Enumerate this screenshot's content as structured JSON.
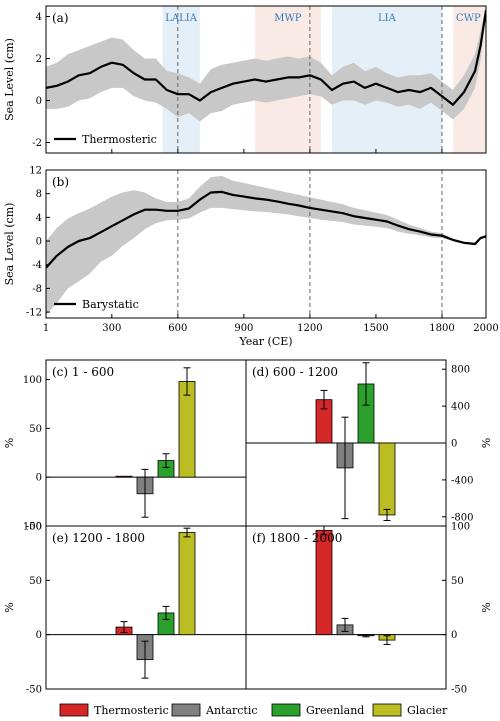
{
  "colors": {
    "thermosteric": "#d62728",
    "antarctic": "#808080",
    "greenland": "#2ca02c",
    "glacier": "#bcbd22",
    "band": "#c8c8c8",
    "cold_period": "#dce9f5",
    "warm_period": "#f8e3de",
    "period_text": "#2f7bbf"
  },
  "chart_data": [
    {
      "id": "a",
      "type": "line",
      "panel_label": "(a)",
      "ylabel": "Sea Level (cm)",
      "xlim": [
        1,
        2000
      ],
      "ylim": [
        -2.5,
        4.5
      ],
      "yticks": [
        -2,
        0,
        2,
        4
      ],
      "legend": "Thermosteric",
      "periods": [
        {
          "label": "LALIA",
          "start": 530,
          "end": 700,
          "kind": "cold"
        },
        {
          "label": "MWP",
          "start": 950,
          "end": 1250,
          "kind": "warm"
        },
        {
          "label": "LIA",
          "start": 1300,
          "end": 1800,
          "kind": "cold"
        },
        {
          "label": "CWP",
          "start": 1850,
          "end": 2000,
          "kind": "warm"
        }
      ],
      "x": [
        1,
        50,
        100,
        150,
        200,
        250,
        300,
        350,
        400,
        450,
        500,
        550,
        600,
        650,
        700,
        750,
        800,
        850,
        900,
        950,
        1000,
        1050,
        1100,
        1150,
        1200,
        1250,
        1300,
        1350,
        1400,
        1450,
        1500,
        1550,
        1600,
        1650,
        1700,
        1750,
        1800,
        1850,
        1900,
        1950,
        1975,
        2000
      ],
      "y": [
        0.6,
        0.7,
        0.9,
        1.2,
        1.3,
        1.6,
        1.8,
        1.7,
        1.3,
        1.0,
        1.0,
        0.5,
        0.3,
        0.3,
        0.0,
        0.4,
        0.6,
        0.8,
        0.9,
        1.0,
        0.9,
        1.0,
        1.1,
        1.1,
        1.2,
        1.0,
        0.5,
        0.8,
        0.9,
        0.6,
        0.8,
        0.6,
        0.4,
        0.5,
        0.4,
        0.6,
        0.2,
        -0.2,
        0.4,
        1.4,
        2.6,
        4.3
      ],
      "upper": [
        1.6,
        1.8,
        2.2,
        2.4,
        2.6,
        2.8,
        3.0,
        2.9,
        2.4,
        2.0,
        2.0,
        1.4,
        1.3,
        1.1,
        0.8,
        1.5,
        1.7,
        1.8,
        1.9,
        2.0,
        1.9,
        2.0,
        2.1,
        2.0,
        2.1,
        1.8,
        1.2,
        1.6,
        1.8,
        1.4,
        1.6,
        1.3,
        1.1,
        1.2,
        1.2,
        1.3,
        0.9,
        0.5,
        1.2,
        2.2,
        3.3,
        4.5
      ],
      "lower": [
        -0.4,
        -0.4,
        -0.3,
        0.0,
        0.1,
        0.4,
        0.6,
        0.6,
        0.2,
        0.0,
        -0.1,
        -0.4,
        -0.8,
        -0.6,
        -1.0,
        -0.6,
        -0.5,
        -0.2,
        -0.1,
        0.0,
        -0.1,
        0.0,
        0.1,
        0.2,
        0.3,
        0.2,
        -0.2,
        0.0,
        0.0,
        -0.2,
        0.0,
        -0.1,
        -0.3,
        -0.2,
        -0.4,
        -0.1,
        -0.5,
        -0.9,
        -0.4,
        0.6,
        1.9,
        4.1
      ]
    },
    {
      "id": "b",
      "type": "line",
      "panel_label": "(b)",
      "ylabel": "Sea Level (cm)",
      "xlabel": "Year (CE)",
      "xlim": [
        1,
        2000
      ],
      "ylim": [
        -13,
        12
      ],
      "yticks": [
        -12,
        -8,
        -4,
        0,
        4,
        8,
        12
      ],
      "xticks": [
        1,
        300,
        600,
        900,
        1200,
        1500,
        1800,
        2000
      ],
      "legend": "Barystatic",
      "x": [
        1,
        50,
        100,
        150,
        200,
        250,
        300,
        350,
        400,
        450,
        500,
        550,
        600,
        650,
        700,
        750,
        800,
        850,
        900,
        950,
        1000,
        1050,
        1100,
        1150,
        1200,
        1250,
        1300,
        1350,
        1400,
        1450,
        1500,
        1550,
        1600,
        1650,
        1700,
        1750,
        1800,
        1850,
        1900,
        1950,
        1975,
        2000
      ],
      "y": [
        -4.5,
        -2.5,
        -1.0,
        0.0,
        0.5,
        1.5,
        2.5,
        3.5,
        4.5,
        5.3,
        5.3,
        5.1,
        5.1,
        5.5,
        7.0,
        8.2,
        8.3,
        7.8,
        7.5,
        7.2,
        7.0,
        6.7,
        6.3,
        6.0,
        5.6,
        5.3,
        5.0,
        4.7,
        4.2,
        3.9,
        3.6,
        3.3,
        2.6,
        2.0,
        1.6,
        1.1,
        0.9,
        0.2,
        -0.3,
        -0.5,
        0.5,
        0.8
      ],
      "upper": [
        0.0,
        2.2,
        3.8,
        4.7,
        5.5,
        6.5,
        7.5,
        8.2,
        8.6,
        8.2,
        7.2,
        6.6,
        6.6,
        7.2,
        9.2,
        10.8,
        11.0,
        10.2,
        9.8,
        9.4,
        9.0,
        8.6,
        8.2,
        7.8,
        7.4,
        7.0,
        6.6,
        6.2,
        5.6,
        5.2,
        4.8,
        4.4,
        3.6,
        2.8,
        2.2,
        1.6,
        1.3,
        0.4,
        -0.1,
        -0.3,
        0.7,
        1.0
      ],
      "lower": [
        -12.5,
        -10.5,
        -8.0,
        -6.8,
        -5.5,
        -3.5,
        -2.5,
        -0.8,
        0.5,
        2.0,
        3.0,
        3.5,
        3.6,
        3.8,
        4.8,
        5.6,
        5.6,
        5.4,
        5.2,
        5.0,
        4.9,
        4.7,
        4.5,
        4.2,
        3.9,
        3.6,
        3.4,
        3.2,
        2.8,
        2.6,
        2.4,
        2.2,
        1.6,
        1.2,
        1.0,
        0.6,
        0.5,
        0.0,
        -0.5,
        -0.7,
        0.3,
        0.6
      ]
    },
    {
      "id": "c",
      "type": "bar",
      "panel_label": "(c) 1 - 600",
      "ylabel": "%",
      "ylim": [
        -50,
        120
      ],
      "yticks": [
        -50,
        0,
        50,
        100
      ],
      "categories": [
        "Thermosteric",
        "Antarctic",
        "Greenland",
        "Glacier"
      ],
      "values": [
        1,
        -17,
        17,
        98
      ],
      "err_low": [
        0,
        24,
        7,
        14
      ],
      "err_high": [
        0,
        25,
        7,
        14
      ]
    },
    {
      "id": "d",
      "type": "bar",
      "panel_label": "(d) 600 - 1200",
      "ylabel": "%",
      "ylim": [
        -900,
        900
      ],
      "yticks": [
        -800,
        -400,
        0,
        400,
        800
      ],
      "categories": [
        "Thermosteric",
        "Antarctic",
        "Greenland",
        "Glacier"
      ],
      "values": [
        470,
        -270,
        640,
        -780
      ],
      "err_low": [
        100,
        550,
        230,
        60
      ],
      "err_high": [
        100,
        550,
        230,
        60
      ]
    },
    {
      "id": "e",
      "type": "bar",
      "panel_label": "(e) 1200 - 1800",
      "ylabel": "%",
      "ylim": [
        -50,
        100
      ],
      "yticks": [
        -50,
        0,
        50,
        100
      ],
      "categories": [
        "Thermosteric",
        "Antarctic",
        "Greenland",
        "Glacier"
      ],
      "values": [
        7,
        -23,
        20,
        94
      ],
      "err_low": [
        5,
        17,
        6,
        4
      ],
      "err_high": [
        5,
        17,
        6,
        4
      ]
    },
    {
      "id": "f",
      "type": "bar",
      "panel_label": "(f) 1800 - 2000",
      "ylabel": "%",
      "ylim": [
        -50,
        100
      ],
      "yticks": [
        -50,
        0,
        50,
        100
      ],
      "categories": [
        "Thermosteric",
        "Antarctic",
        "Greenland",
        "Glacier"
      ],
      "values": [
        96,
        9,
        -1,
        -5
      ],
      "err_low": [
        4,
        6,
        1,
        4
      ],
      "err_high": [
        4,
        6,
        1,
        4
      ]
    }
  ],
  "legend": {
    "items": [
      "Thermosteric",
      "Antarctic",
      "Greenland",
      "Glacier"
    ]
  }
}
